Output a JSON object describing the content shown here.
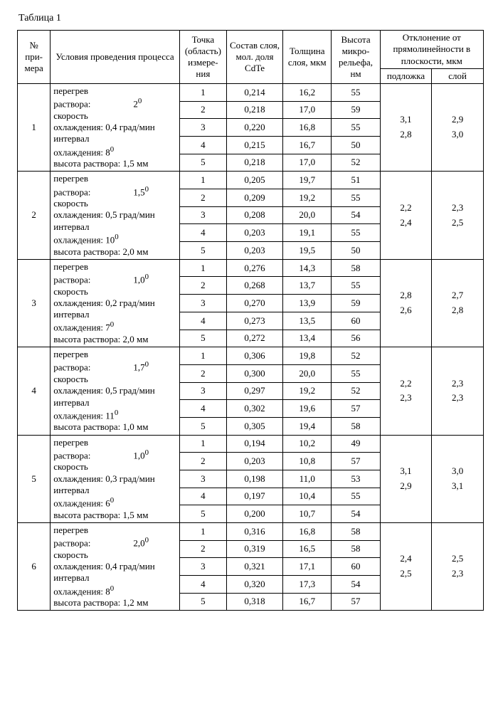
{
  "caption": "Таблица 1",
  "headers": {
    "num": "№ при-мера",
    "conditions": "Условия проведения процесса",
    "point": "Точка (область) измере-ния",
    "composition": "Состав слоя, мол. доля CdTe",
    "thickness": "Толщина слоя, мкм",
    "relief": "Высота микро-рельефа, нм",
    "deviation_group": "Отклонение от прямолинейности в плоскости, мкм",
    "deviation_sub": "подложка",
    "deviation_layer": "слой"
  },
  "cond_labels": {
    "overheat": "перегрев",
    "solution": "раствора:",
    "speed": "скорость",
    "cooling": "охлаждения:",
    "interval": "интервал",
    "cooling2": "охлаждения:",
    "height": "высота раствора:"
  },
  "units": {
    "grad_min": " град/мин",
    "mm": " мм"
  },
  "examples": [
    {
      "num": "1",
      "overheat_deg": "2",
      "overheat_sup": "0",
      "cooling_rate": "0,4",
      "interval_deg": "8",
      "interval_sup": "0",
      "height": "1,5",
      "rows": [
        {
          "p": "1",
          "c": "0,214",
          "t": "16,2",
          "r": "55"
        },
        {
          "p": "2",
          "c": "0,218",
          "t": "17,0",
          "r": "59"
        },
        {
          "p": "3",
          "c": "0,220",
          "t": "16,8",
          "r": "55"
        },
        {
          "p": "4",
          "c": "0,215",
          "t": "16,7",
          "r": "50"
        },
        {
          "p": "5",
          "c": "0,218",
          "t": "17,0",
          "r": "52"
        }
      ],
      "dev_sub_a": "3,1",
      "dev_sub_b": "2,8",
      "dev_lay_a": "2,9",
      "dev_lay_b": "3,0"
    },
    {
      "num": "2",
      "overheat_deg": "1,5",
      "overheat_sup": "0",
      "cooling_rate": "0,5",
      "interval_deg": "10",
      "interval_sup": "0",
      "height": "2,0",
      "rows": [
        {
          "p": "1",
          "c": "0,205",
          "t": "19,7",
          "r": "51"
        },
        {
          "p": "2",
          "c": "0,209",
          "t": "19,2",
          "r": "55"
        },
        {
          "p": "3",
          "c": "0,208",
          "t": "20,0",
          "r": "54"
        },
        {
          "p": "4",
          "c": "0,203",
          "t": "19,1",
          "r": "55"
        },
        {
          "p": "5",
          "c": "0,203",
          "t": "19,5",
          "r": "50"
        }
      ],
      "dev_sub_a": "2,2",
      "dev_sub_b": "2,4",
      "dev_lay_a": "2,3",
      "dev_lay_b": "2,5"
    },
    {
      "num": "3",
      "overheat_deg": "1,0",
      "overheat_sup": "0",
      "cooling_rate": "0,2",
      "interval_deg": "7",
      "interval_sup": "0",
      "height": "2,0",
      "rows": [
        {
          "p": "1",
          "c": "0,276",
          "t": "14,3",
          "r": "58"
        },
        {
          "p": "2",
          "c": "0,268",
          "t": "13,7",
          "r": "55"
        },
        {
          "p": "3",
          "c": "0,270",
          "t": "13,9",
          "r": "59"
        },
        {
          "p": "4",
          "c": "0,273",
          "t": "13,5",
          "r": "60"
        },
        {
          "p": "5",
          "c": "0,272",
          "t": "13,4",
          "r": "56"
        }
      ],
      "dev_sub_a": "2,8",
      "dev_sub_b": "2,6",
      "dev_lay_a": "2,7",
      "dev_lay_b": "2,8"
    },
    {
      "num": "4",
      "overheat_deg": "1,7",
      "overheat_sup": "0",
      "cooling_rate": "0,5",
      "interval_deg": "11",
      "interval_sup": "0",
      "height": "1,0",
      "rows": [
        {
          "p": "1",
          "c": "0,306",
          "t": "19,8",
          "r": "52"
        },
        {
          "p": "2",
          "c": "0,300",
          "t": "20,0",
          "r": "55"
        },
        {
          "p": "3",
          "c": "0,297",
          "t": "19,2",
          "r": "52"
        },
        {
          "p": "4",
          "c": "0,302",
          "t": "19,6",
          "r": "57"
        },
        {
          "p": "5",
          "c": "0,305",
          "t": "19,4",
          "r": "58"
        }
      ],
      "dev_sub_a": "2,2",
      "dev_sub_b": "2,3",
      "dev_lay_a": "2,3",
      "dev_lay_b": "2,3"
    },
    {
      "num": "5",
      "overheat_deg": "1,0",
      "overheat_sup": "0",
      "cooling_rate": "0,3",
      "interval_deg": "6",
      "interval_sup": "0",
      "height": "1,5",
      "rows": [
        {
          "p": "1",
          "c": "0,194",
          "t": "10,2",
          "r": "49"
        },
        {
          "p": "2",
          "c": "0,203",
          "t": "10,8",
          "r": "57"
        },
        {
          "p": "3",
          "c": "0,198",
          "t": "11,0",
          "r": "53"
        },
        {
          "p": "4",
          "c": "0,197",
          "t": "10,4",
          "r": "55"
        },
        {
          "p": "5",
          "c": "0,200",
          "t": "10,7",
          "r": "54"
        }
      ],
      "dev_sub_a": "3,1",
      "dev_sub_b": "2,9",
      "dev_lay_a": "3,0",
      "dev_lay_b": "3,1"
    },
    {
      "num": "6",
      "overheat_deg": "2,0",
      "overheat_sup": "0",
      "cooling_rate": "0,4",
      "interval_deg": "8",
      "interval_sup": "0",
      "height": "1,2",
      "rows": [
        {
          "p": "1",
          "c": "0,316",
          "t": "16,8",
          "r": "58"
        },
        {
          "p": "2",
          "c": "0,319",
          "t": "16,5",
          "r": "58"
        },
        {
          "p": "3",
          "c": "0,321",
          "t": "17,1",
          "r": "60"
        },
        {
          "p": "4",
          "c": "0,320",
          "t": "17,3",
          "r": "54"
        },
        {
          "p": "5",
          "c": "0,318",
          "t": "16,7",
          "r": "57"
        }
      ],
      "dev_sub_a": "2,4",
      "dev_sub_b": "2,5",
      "dev_lay_a": "2,5",
      "dev_lay_b": "2,3"
    }
  ]
}
